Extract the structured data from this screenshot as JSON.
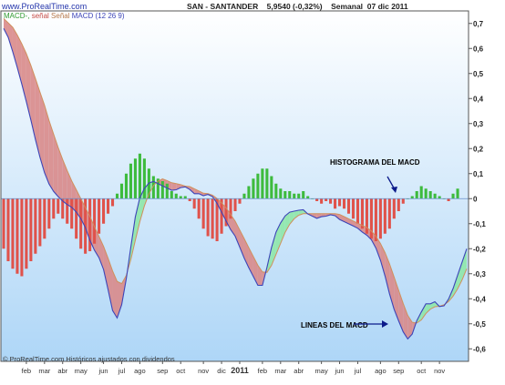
{
  "header": {
    "site": "www.ProRealTime.com",
    "title": "SAN - SANTANDER    5,9540 (-0,32%)    Semanal  07 dic 2011"
  },
  "legend": {
    "macd_hist": "MACD-,",
    "signal": "señal",
    "signal2": "Señal",
    "macd": "MACD (12 26 9)"
  },
  "footer": "© ProRealTime.com  Históricos ajustados con dividendos",
  "annotations": {
    "histogram": "HISTOGRAMA DEL MACD",
    "lines": "LINEAS DEL MACD"
  },
  "colors": {
    "background_top": "#ffffff",
    "background_bottom": "#aed6f7",
    "positive_bar": "#3dbb3d",
    "negative_bar": "#e0524a",
    "macd_line": "#3c44b8",
    "signal_line": "#d0905c",
    "fill_negative": "#d98a8a",
    "fill_positive": "#8ee7a8",
    "arrow": "#0b1a8a"
  },
  "chart_data": {
    "type": "line",
    "title": "SAN - SANTANDER    5,9540 (-0,32%)    Semanal  07 dic 2011",
    "indicator": "MACD (12 26 9)",
    "ylim": [
      -0.65,
      0.75
    ],
    "yticks": [
      -0.6,
      -0.5,
      -0.4,
      -0.3,
      -0.2,
      -0.1,
      0,
      0.1,
      0.2,
      0.3,
      0.4,
      0.5,
      0.6,
      0.7
    ],
    "ytick_labels": [
      "-0,6",
      "-0,5",
      "-0,4",
      "-0,3",
      "-0,2",
      "-0,1",
      "0",
      "0,1",
      "0,2",
      "0,3",
      "0,4",
      "0,5",
      "0,6",
      "0,7"
    ],
    "x_labels": [
      "feb",
      "mar",
      "abr",
      "may",
      "jun",
      "jul",
      "ago",
      "sep",
      "oct",
      "nov",
      "dic",
      "2011",
      "feb",
      "mar",
      "abr",
      "may",
      "jun",
      "jul",
      "ago",
      "sep",
      "oct",
      "nov"
    ],
    "x_label_weeks": [
      5,
      9,
      13,
      17,
      22,
      26,
      30,
      35,
      39,
      44,
      48,
      52,
      57,
      61,
      65,
      70,
      74,
      78,
      83,
      87,
      92,
      96
    ],
    "weeks": 103,
    "series": [
      {
        "name": "MACD",
        "values": [
          0.68,
          0.64,
          0.57,
          0.5,
          0.42,
          0.34,
          0.25,
          0.17,
          0.1,
          0.05,
          0.02,
          0.0,
          -0.02,
          -0.03,
          -0.05,
          -0.08,
          -0.12,
          -0.18,
          -0.22,
          -0.25,
          -0.33,
          -0.44,
          -0.48,
          -0.42,
          -0.3,
          -0.15,
          -0.02,
          0.03,
          0.06,
          0.07,
          0.06,
          0.05,
          0.04,
          0.03,
          0.04,
          0.05,
          0.04,
          0.02,
          0.02,
          0.01,
          0.02,
          0.0,
          -0.04,
          -0.08,
          -0.12,
          -0.15,
          -0.2,
          -0.25,
          -0.29,
          -0.33,
          -0.37,
          -0.29,
          -0.2,
          -0.13,
          -0.09,
          -0.06,
          -0.05,
          -0.05,
          -0.04,
          -0.06,
          -0.07,
          -0.08,
          -0.07,
          -0.07,
          -0.06,
          -0.08,
          -0.09,
          -0.1,
          -0.11,
          -0.12,
          -0.14,
          -0.15,
          -0.18,
          -0.23,
          -0.3,
          -0.38,
          -0.45,
          -0.5,
          -0.55,
          -0.57,
          -0.5,
          -0.46,
          -0.42,
          -0.42,
          -0.41,
          -0.44,
          -0.42,
          -0.38,
          -0.32,
          -0.26,
          -0.2
        ]
      },
      {
        "name": "Señal",
        "values": [
          0.72,
          0.7,
          0.68,
          0.64,
          0.6,
          0.55,
          0.49,
          0.43,
          0.37,
          0.3,
          0.24,
          0.18,
          0.13,
          0.08,
          0.04,
          0.0,
          -0.04,
          -0.08,
          -0.13,
          -0.17,
          -0.22,
          -0.28,
          -0.33,
          -0.34,
          -0.3,
          -0.22,
          -0.13,
          -0.05,
          0.01,
          0.05,
          0.07,
          0.08,
          0.07,
          0.06,
          0.06,
          0.05,
          0.05,
          0.04,
          0.03,
          0.02,
          0.02,
          0.01,
          -0.01,
          -0.03,
          -0.06,
          -0.09,
          -0.13,
          -0.17,
          -0.21,
          -0.25,
          -0.29,
          -0.3,
          -0.27,
          -0.22,
          -0.17,
          -0.12,
          -0.09,
          -0.07,
          -0.06,
          -0.06,
          -0.06,
          -0.06,
          -0.06,
          -0.06,
          -0.06,
          -0.06,
          -0.07,
          -0.08,
          -0.09,
          -0.1,
          -0.11,
          -0.12,
          -0.14,
          -0.17,
          -0.21,
          -0.26,
          -0.32,
          -0.38,
          -0.44,
          -0.49,
          -0.5,
          -0.49,
          -0.46,
          -0.44,
          -0.43,
          -0.43,
          -0.42,
          -0.4,
          -0.37,
          -0.33,
          -0.28
        ]
      },
      {
        "name": "MACD-, señal",
        "type": "bar",
        "start_week": 0,
        "values": [
          -0.2,
          -0.25,
          -0.28,
          -0.3,
          -0.31,
          -0.28,
          -0.25,
          -0.22,
          -0.19,
          -0.16,
          -0.12,
          -0.08,
          -0.06,
          -0.08,
          -0.1,
          -0.12,
          -0.16,
          -0.2,
          -0.22,
          -0.21,
          -0.18,
          -0.14,
          -0.1,
          -0.06,
          -0.03,
          0.02,
          0.06,
          0.1,
          0.14,
          0.16,
          0.18,
          0.16,
          0.12,
          0.09,
          0.08,
          0.07,
          0.06,
          0.03,
          0.02,
          0.01,
          0.01,
          -0.01,
          -0.04,
          -0.08,
          -0.12,
          -0.15,
          -0.16,
          -0.17,
          -0.14,
          -0.11,
          -0.08,
          -0.05,
          -0.02,
          0.02,
          0.05,
          0.08,
          0.1,
          0.12,
          0.12,
          0.09,
          0.06,
          0.04,
          0.03,
          0.03,
          0.02,
          0.02,
          0.03,
          0.01,
          0.0,
          -0.01,
          -0.02,
          -0.01,
          -0.02,
          -0.04,
          -0.03,
          -0.04,
          -0.06,
          -0.08,
          -0.1,
          -0.12,
          -0.14,
          -0.16,
          -0.17,
          -0.16,
          -0.14,
          -0.12,
          -0.08,
          -0.05,
          -0.02,
          0.0,
          0.01,
          0.03,
          0.05,
          0.04,
          0.03,
          0.02,
          0.01,
          0.0,
          -0.01,
          0.02,
          0.04
        ]
      }
    ]
  }
}
